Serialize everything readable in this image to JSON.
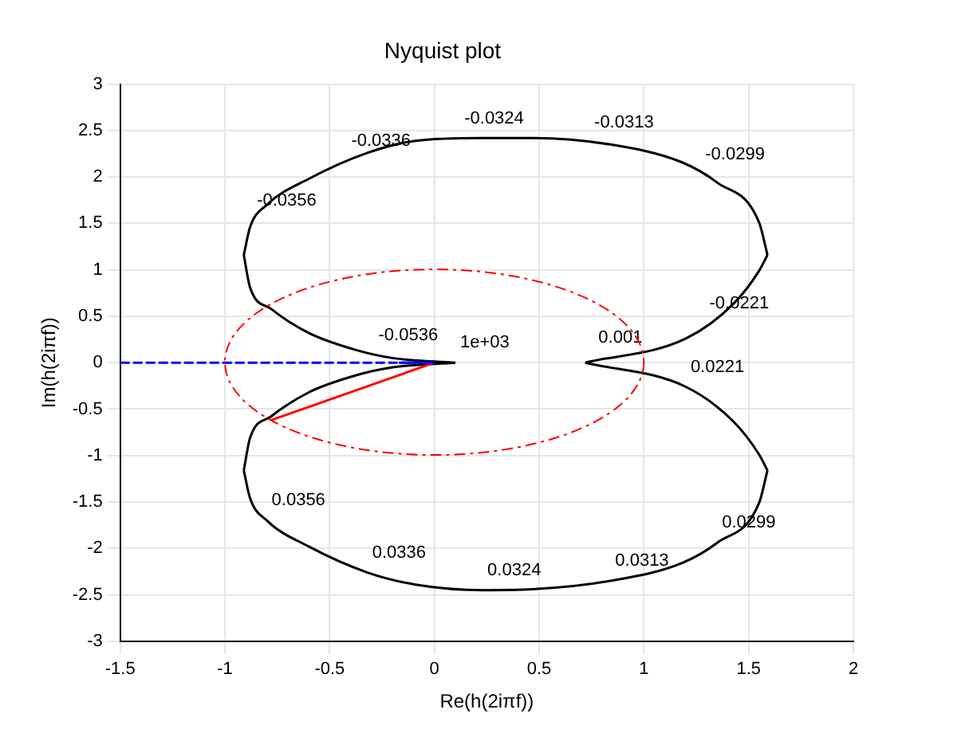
{
  "chart_data": {
    "type": "line",
    "title": "Nyquist plot",
    "xlabel": "Re(h(2iπf))",
    "ylabel": "Im(h(2iπf))",
    "xlim": [
      -1.5,
      2
    ],
    "xticks": [
      -1.5,
      -1,
      -0.5,
      0,
      0.5,
      1,
      1.5,
      2
    ],
    "ylim": [
      -3,
      3
    ],
    "yticks": [
      -3,
      -2.5,
      -2,
      -1.5,
      -1,
      -0.5,
      0,
      0.5,
      1,
      1.5,
      2,
      2.5,
      3
    ],
    "grid": true,
    "legend": false,
    "marker": "none",
    "series": [
      {
        "type": "line",
        "color": "#000000",
        "line_style": "solid",
        "x": [
          0.1,
          -0.2,
          -0.38,
          -0.6,
          -0.78,
          -0.88,
          -0.91
        ],
        "values": [
          0,
          0.05,
          0.14,
          0.32,
          0.58,
          0.81,
          1.16
        ]
      },
      {
        "type": "line",
        "color": "#000000",
        "line_style": "solid",
        "x": [
          -0.91,
          -0.88,
          -0.8,
          -0.6,
          -0.32,
          -0.09,
          0.23,
          0.47,
          0.84,
          1.18,
          1.35,
          1.55,
          1.59
        ],
        "values": [
          1.16,
          1.46,
          1.7,
          1.98,
          2.26,
          2.39,
          2.42,
          2.42,
          2.35,
          2.16,
          1.94,
          1.51,
          1.16
        ]
      },
      {
        "type": "line",
        "color": "#000000",
        "line_style": "solid",
        "x": [
          1.59,
          1.55,
          1.43,
          1.2,
          0.72
        ],
        "values": [
          1.16,
          0.99,
          0.64,
          0.26,
          0
        ]
      },
      {
        "type": "line",
        "color": "#000000",
        "line_style": "solid",
        "x": [
          0.72,
          1.2,
          1.43,
          1.55,
          1.59
        ],
        "values": [
          0,
          -0.26,
          -0.64,
          -0.99,
          -1.16
        ]
      },
      {
        "type": "line",
        "color": "#000000",
        "line_style": "solid",
        "x": [
          1.59,
          1.55,
          1.35,
          1.18,
          0.84,
          0.47,
          0.23,
          -0.09,
          -0.32,
          -0.6,
          -0.8,
          -0.88,
          -0.91
        ],
        "values": [
          -1.16,
          -1.51,
          -1.94,
          -2.16,
          -2.35,
          -2.44,
          -2.45,
          -2.39,
          -2.26,
          -1.98,
          -1.7,
          -1.46,
          -1.16
        ]
      },
      {
        "type": "line",
        "color": "#000000",
        "line_style": "solid",
        "x": [
          -0.91,
          -0.88,
          -0.78,
          -0.6,
          -0.38,
          -0.2,
          0.1
        ],
        "values": [
          -1.16,
          -0.81,
          -0.58,
          -0.32,
          -0.14,
          -0.05,
          0
        ]
      },
      {
        "type": "line",
        "color": "#0000ff",
        "line_style": "dashed",
        "x": [
          -1.5,
          0
        ],
        "values": [
          0,
          0
        ]
      },
      {
        "type": "line",
        "color": "#ff0000",
        "line_style": "solid",
        "x": [
          -0.78,
          0
        ],
        "values": [
          -0.62,
          0
        ]
      },
      {
        "type": "line",
        "color": "#0000ff",
        "line_style": "solid",
        "x": [
          -0.17,
          0
        ],
        "values": [
          0,
          0
        ]
      }
    ],
    "annotations": [
      {
        "text": "-0.0356",
        "x": -0.87,
        "y": 1.53
      },
      {
        "text": "-0.0336",
        "x": -0.42,
        "y": 2.17
      },
      {
        "text": "-0.0324",
        "x": 0.12,
        "y": 2.41
      },
      {
        "text": "-0.0313",
        "x": 0.74,
        "y": 2.37
      },
      {
        "text": "-0.0299",
        "x": 1.27,
        "y": 2.03
      },
      {
        "text": "-0.0221",
        "x": 1.29,
        "y": 0.42
      },
      {
        "text": "0.001",
        "x": 0.76,
        "y": 0.05
      },
      {
        "text": "1e+03",
        "x": 0.1,
        "y": 0
      },
      {
        "text": "-0.0536",
        "x": -0.29,
        "y": 0.08
      },
      {
        "text": "0.0221",
        "x": 1.2,
        "y": -0.26
      },
      {
        "text": "0.0299",
        "x": 1.35,
        "y": -1.94
      },
      {
        "text": "0.0313",
        "x": 0.84,
        "y": -2.35
      },
      {
        "text": "0.0324",
        "x": 0.23,
        "y": -2.45
      },
      {
        "text": "0.0336",
        "x": -0.32,
        "y": -2.26
      },
      {
        "text": "0.0356",
        "x": -0.8,
        "y": -1.7
      }
    ]
  }
}
